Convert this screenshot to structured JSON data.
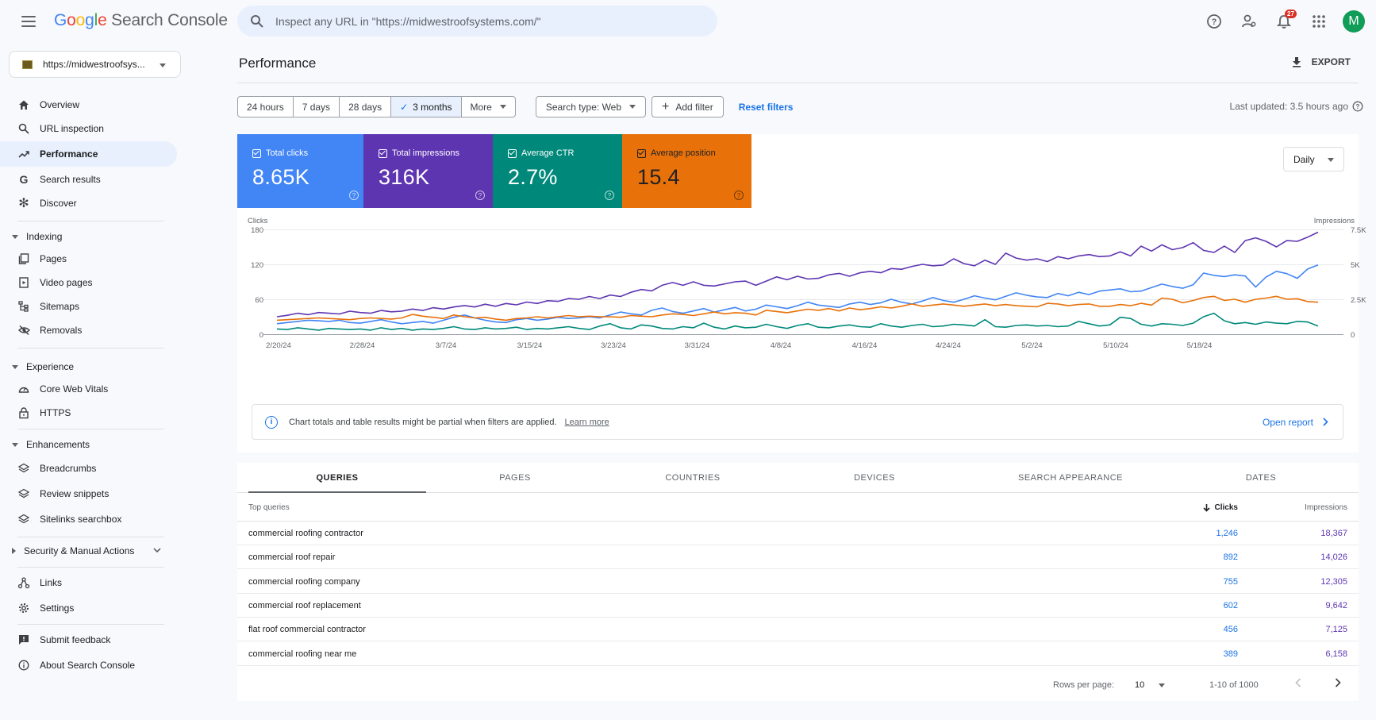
{
  "header": {
    "brand": {
      "g": "G",
      "o1": "o",
      "o2": "o",
      "g2": "g",
      "l": "l",
      "e": "e",
      "rest": " Search Console"
    },
    "search_placeholder": "Inspect any URL in \"https://midwestroofsystems.com/\"",
    "notification_count": "27",
    "avatar_letter": "M"
  },
  "sidebar": {
    "property": "https://midwestroofsys...",
    "items": {
      "overview": "Overview",
      "url_inspection": "URL inspection",
      "performance": "Performance",
      "search_results": "Search results",
      "discover": "Discover",
      "indexing": "Indexing",
      "pages": "Pages",
      "video_pages": "Video pages",
      "sitemaps": "Sitemaps",
      "removals": "Removals",
      "experience": "Experience",
      "core_web_vitals": "Core Web Vitals",
      "https": "HTTPS",
      "enhancements": "Enhancements",
      "breadcrumbs": "Breadcrumbs",
      "review_snippets": "Review snippets",
      "sitelinks_searchbox": "Sitelinks searchbox",
      "security": "Security & Manual Actions",
      "links": "Links",
      "settings": "Settings",
      "submit_feedback": "Submit feedback",
      "about": "About Search Console"
    }
  },
  "main": {
    "title": "Performance",
    "export": "EXPORT",
    "date_ranges": [
      "24 hours",
      "7 days",
      "28 days",
      "3 months",
      "More"
    ],
    "selected_range": "3 months",
    "search_type": "Search type: Web",
    "add_filter": "Add filter",
    "reset_filters": "Reset filters",
    "last_updated": "Last updated: 3.5 hours ago",
    "granularity": "Daily",
    "notice": "Chart totals and table results might be partial when filters are applied.",
    "learn_more": "Learn more",
    "open_report": "Open report"
  },
  "metrics": {
    "clicks": {
      "label": "Total clicks",
      "value": "8.65K",
      "color": "#4285f4"
    },
    "impressions": {
      "label": "Total impressions",
      "value": "316K",
      "color": "#5e35b1"
    },
    "ctr": {
      "label": "Average CTR",
      "value": "2.7%",
      "color": "#00897b"
    },
    "position": {
      "label": "Average position",
      "value": "15.4",
      "color": "#e8710a"
    }
  },
  "chart_data": {
    "type": "line",
    "ylabel_left": "Clicks",
    "ylabel_right": "Impressions",
    "yticks_left": [
      "180",
      "120",
      "60",
      "0"
    ],
    "yticks_right": [
      "7.5K",
      "5K",
      "2.5K",
      "0"
    ],
    "ylim_left": [
      0,
      180
    ],
    "ylim_right": [
      0,
      7500
    ],
    "xticks": [
      "2/20/24",
      "2/28/24",
      "3/7/24",
      "3/15/24",
      "3/23/24",
      "3/31/24",
      "4/8/24",
      "4/16/24",
      "4/24/24",
      "5/2/24",
      "5/10/24",
      "5/18/24"
    ],
    "series": [
      {
        "name": "Total impressions",
        "axis": "right",
        "color": "#5e35b1",
        "values": [
          1250,
          1350,
          1500,
          1400,
          1550,
          1500,
          1450,
          1650,
          1550,
          1500,
          1700,
          1600,
          1650,
          1800,
          1700,
          1900,
          1800,
          1950,
          2050,
          1950,
          2150,
          2000,
          2200,
          2100,
          2300,
          2200,
          2400,
          2350,
          2550,
          2500,
          2700,
          2550,
          2800,
          2700,
          3000,
          3200,
          3100,
          3500,
          3700,
          3500,
          3750,
          3500,
          3450,
          3600,
          3750,
          3800,
          3500,
          3800,
          4100,
          3900,
          4150,
          3950,
          4000,
          4250,
          4350,
          4150,
          4400,
          4500,
          4400,
          4700,
          4650,
          4850,
          5000,
          4900,
          4950,
          5400,
          5050,
          4900,
          5300,
          5000,
          5800,
          5450,
          5300,
          5400,
          5200,
          5550,
          5400,
          5600,
          5700,
          5550,
          5600,
          5900,
          5600,
          6300,
          5950,
          6400,
          6050,
          6200,
          6550,
          6000,
          5850,
          6300,
          5850,
          6700,
          6900,
          6650,
          6250,
          6700,
          6650,
          6950,
          7300
        ]
      },
      {
        "name": "Total clicks",
        "axis": "left",
        "color": "#4285f4",
        "values": [
          18,
          20,
          22,
          24,
          23,
          22,
          24,
          20,
          19,
          22,
          25,
          21,
          18,
          20,
          22,
          19,
          24,
          29,
          33,
          28,
          24,
          21,
          20,
          25,
          27,
          24,
          26,
          29,
          27,
          28,
          30,
          28,
          33,
          38,
          35,
          33,
          41,
          45,
          39,
          36,
          40,
          44,
          38,
          42,
          46,
          40,
          43,
          50,
          47,
          44,
          49,
          55,
          50,
          48,
          46,
          52,
          55,
          51,
          54,
          60,
          55,
          52,
          57,
          63,
          58,
          55,
          60,
          66,
          62,
          59,
          65,
          71,
          67,
          64,
          63,
          70,
          66,
          72,
          68,
          74,
          76,
          78,
          73,
          74,
          80,
          86,
          82,
          79,
          85,
          105,
          101,
          99,
          102,
          100,
          81,
          98,
          108,
          104,
          96,
          112,
          119
        ]
      },
      {
        "name": "Average position",
        "axis": "left",
        "color": "#e8710a",
        "values": [
          24,
          25,
          26,
          27,
          28,
          27,
          26,
          25,
          27,
          28,
          27,
          26,
          28,
          34,
          31,
          29,
          27,
          33,
          30,
          28,
          29,
          26,
          24,
          27,
          28,
          30,
          28,
          30,
          32,
          30,
          31,
          30,
          30,
          29,
          32,
          31,
          30,
          33,
          35,
          34,
          32,
          35,
          38,
          35,
          37,
          36,
          33,
          41,
          39,
          37,
          40,
          43,
          41,
          44,
          40,
          45,
          42,
          44,
          47,
          45,
          48,
          52,
          48,
          50,
          52,
          50,
          48,
          50,
          52,
          49,
          51,
          49,
          48,
          47,
          53,
          52,
          49,
          51,
          52,
          48,
          48,
          51,
          49,
          53,
          50,
          62,
          60,
          54,
          58,
          63,
          65,
          58,
          60,
          55,
          60,
          62,
          65,
          60,
          61,
          56,
          55
        ]
      },
      {
        "name": "Average CTR",
        "axis": "left",
        "color": "#00897b",
        "values": [
          9,
          8,
          11,
          9,
          7,
          10,
          9,
          8,
          9,
          7,
          11,
          8,
          10,
          7,
          9,
          8,
          10,
          13,
          9,
          8,
          11,
          9,
          10,
          12,
          8,
          10,
          9,
          11,
          13,
          10,
          8,
          14,
          18,
          11,
          9,
          16,
          14,
          10,
          9,
          13,
          11,
          19,
          12,
          9,
          14,
          11,
          12,
          17,
          13,
          10,
          15,
          18,
          12,
          11,
          14,
          16,
          13,
          12,
          18,
          14,
          12,
          15,
          17,
          13,
          14,
          17,
          16,
          14,
          25,
          13,
          12,
          15,
          16,
          14,
          15,
          13,
          14,
          22,
          18,
          14,
          16,
          29,
          27,
          17,
          14,
          18,
          17,
          15,
          19,
          30,
          36,
          23,
          18,
          20,
          17,
          21,
          19,
          18,
          22,
          21,
          14
        ]
      }
    ]
  },
  "table": {
    "tabs": [
      "QUERIES",
      "PAGES",
      "COUNTRIES",
      "DEVICES",
      "SEARCH APPEARANCE",
      "DATES"
    ],
    "col_query": "Top queries",
    "col_clicks": "Clicks",
    "col_impressions": "Impressions",
    "rows": [
      {
        "query": "commercial roofing contractor",
        "clicks": "1,246",
        "impressions": "18,367"
      },
      {
        "query": "commercial roof repair",
        "clicks": "892",
        "impressions": "14,026"
      },
      {
        "query": "commercial roofing company",
        "clicks": "755",
        "impressions": "12,305"
      },
      {
        "query": "commercial roof replacement",
        "clicks": "602",
        "impressions": "9,642"
      },
      {
        "query": "flat roof commercial contractor",
        "clicks": "456",
        "impressions": "7,125"
      },
      {
        "query": "commercial roofing near me",
        "clicks": "389",
        "impressions": "6,158"
      }
    ],
    "rows_per_page_label": "Rows per page:",
    "rows_per_page": "10",
    "range": "1-10 of 1000"
  }
}
